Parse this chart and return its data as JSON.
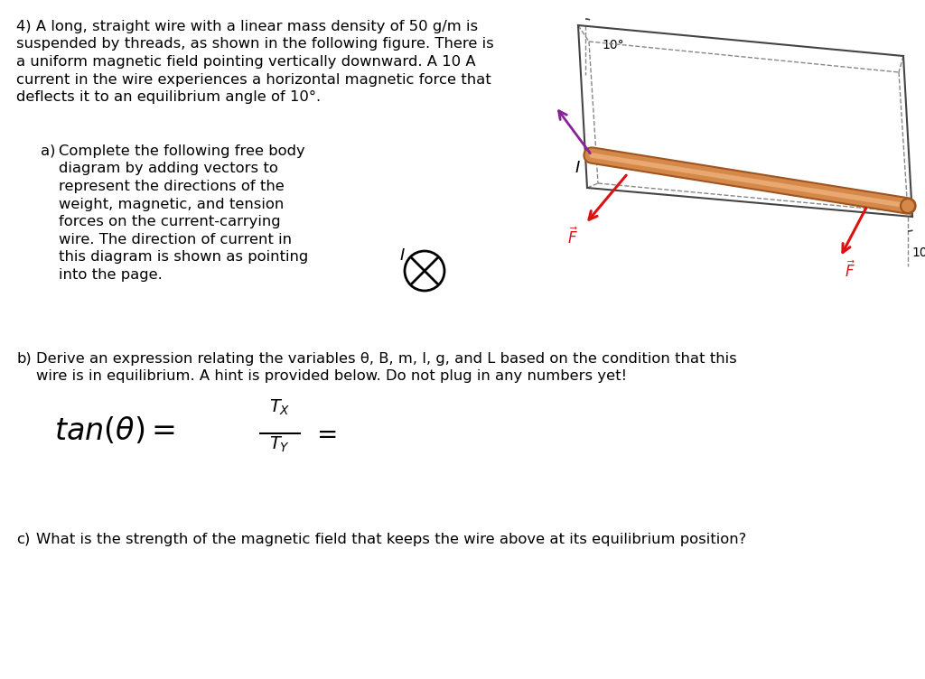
{
  "bg_color": "#ffffff",
  "text_color": "#000000",
  "wire_color": "#d4884a",
  "wire_dark": "#a05520",
  "arrow_red": "#dd1111",
  "arrow_purple": "#882299",
  "diagram_gray": "#444444",
  "dashed_gray": "#888888",
  "title_line1": "4) A long, straight wire with a linear mass density of 50 g/m is",
  "title_line2": "suspended by threads, as shown in the following figure. There is",
  "title_line3": "a uniform magnetic field pointing vertically downward. A 10 A",
  "title_line4": "current in the wire experiences a horizontal magnetic force that",
  "title_line5": "deflects it to an equilibrium angle of 10°.",
  "part_a_label": "a)",
  "part_a_line1": "Complete the following free body",
  "part_a_line2": "diagram by adding vectors to",
  "part_a_line3": "represent the directions of the",
  "part_a_line4": "weight, magnetic, and tension",
  "part_a_line5": "forces on the current-carrying",
  "part_a_line6": "wire. The direction of current in",
  "part_a_line7": "this diagram is shown as pointing",
  "part_a_line8": "into the page.",
  "part_b_label": "b)",
  "part_b_line1": "Derive an expression relating the variables θ, B, m, I, g, and L based on the condition that this",
  "part_b_line2": "wire is in equilibrium. A hint is provided below. Do not plug in any numbers yet!",
  "part_c_label": "c)",
  "part_c_line1": "What is the strength of the magnetic field that keeps the wire above at its equilibrium position?"
}
